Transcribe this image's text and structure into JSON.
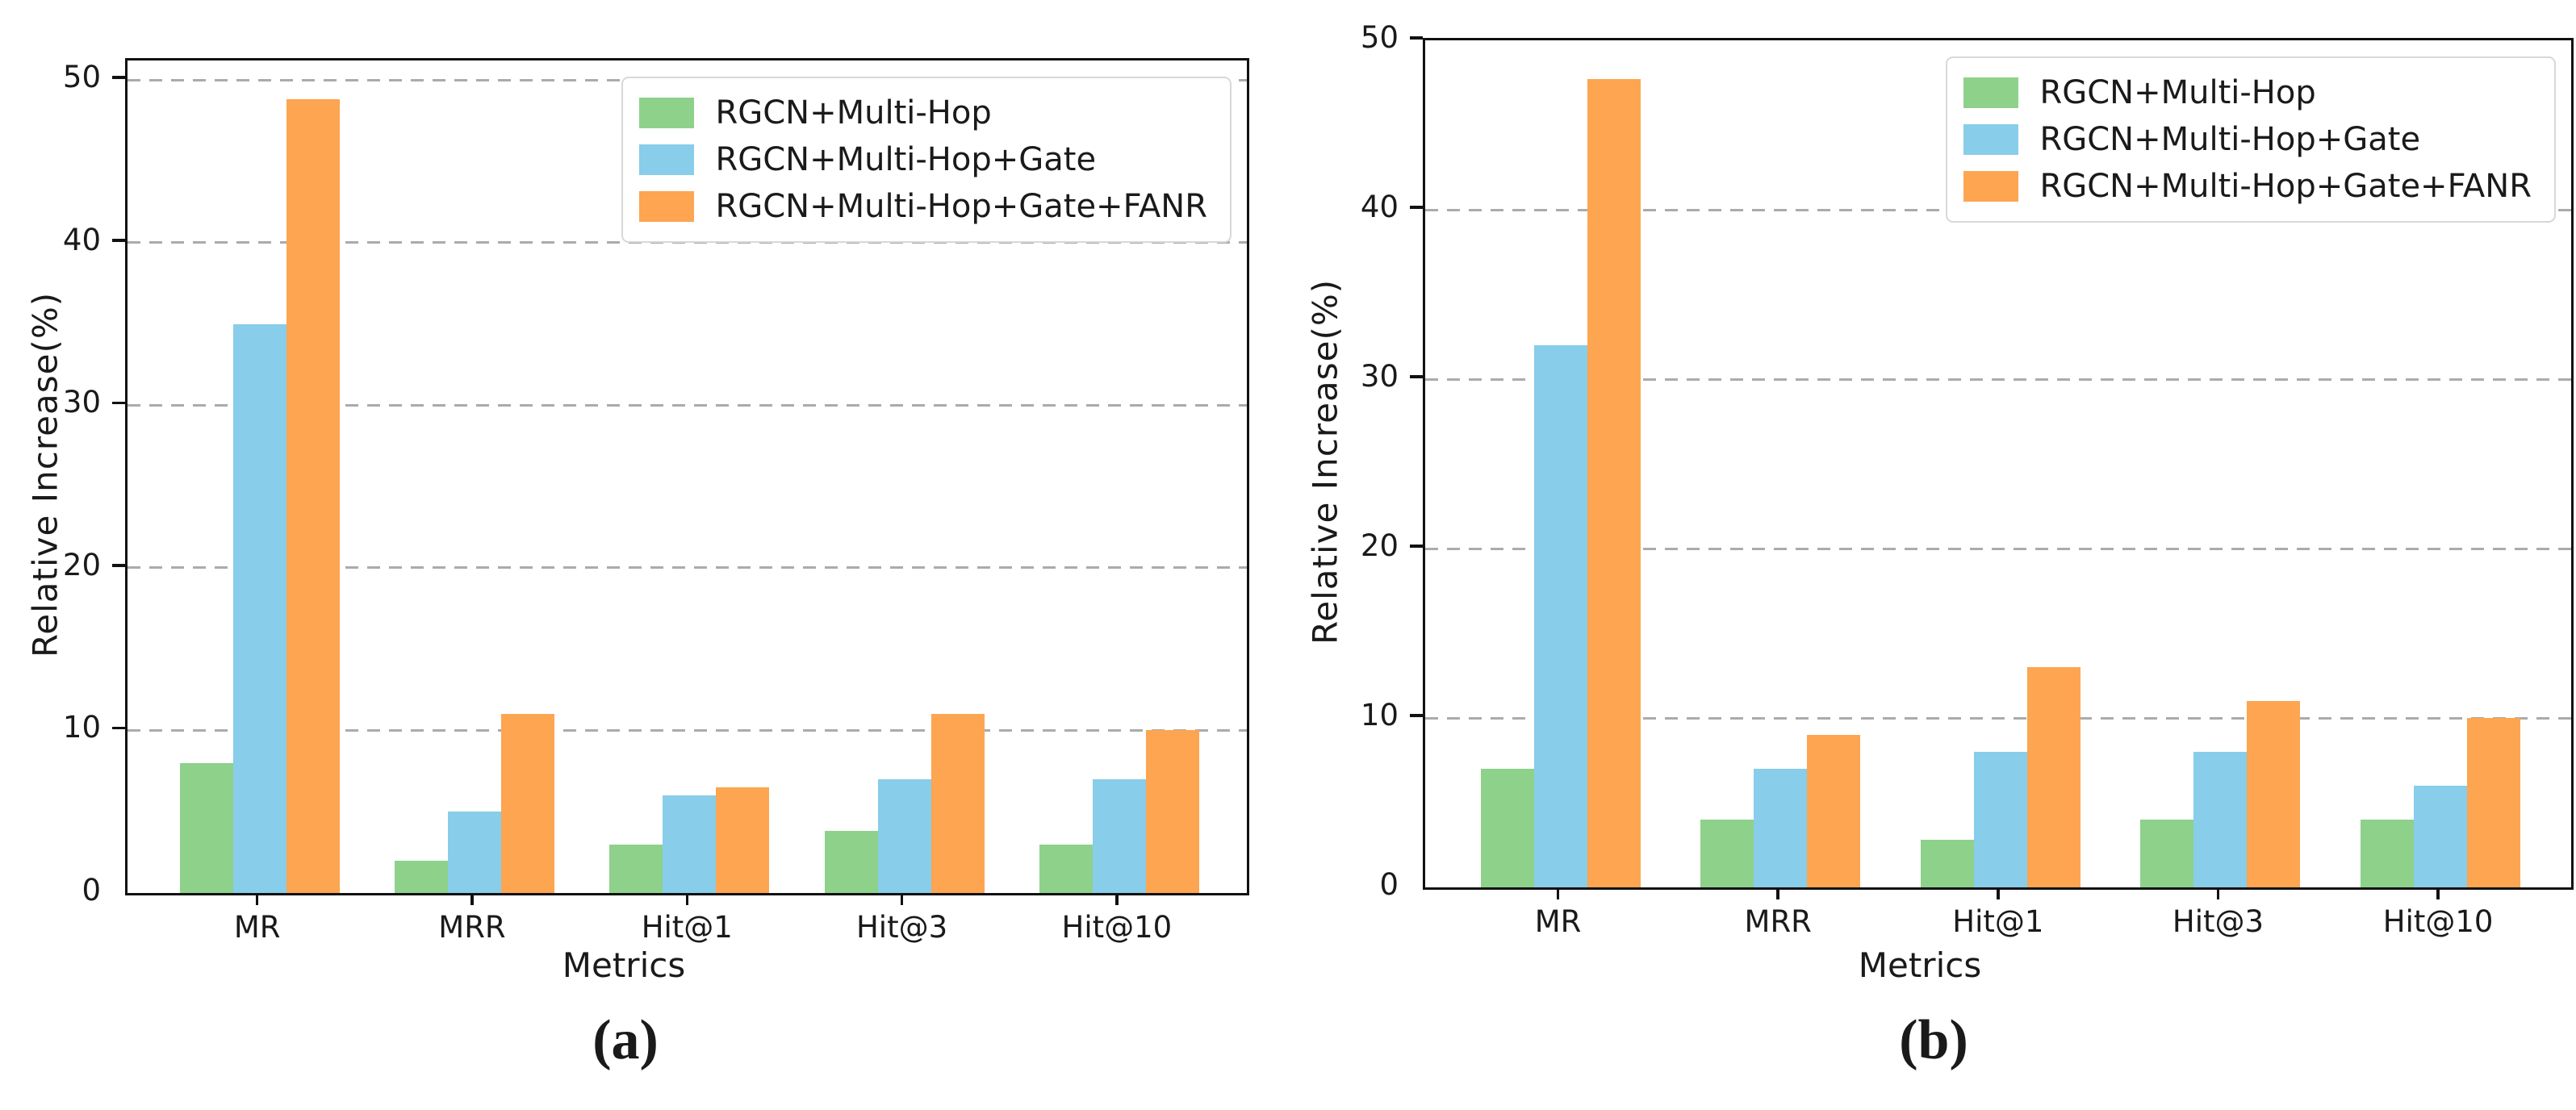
{
  "figure": {
    "description": "Two grouped bar charts comparing relative increase of RGCN model variants over five ranking metrics",
    "background": "#ffffff",
    "colors": {
      "series1": "#8ed18b",
      "series2": "#88cde9",
      "series3": "#fda551",
      "grid": "#ababab",
      "spine": "#111111",
      "text": "#1a1a1a",
      "legend_border": "#d8d8d8"
    }
  },
  "legend": {
    "position": "upper-right",
    "items": [
      {
        "label": "RGCN+Multi-Hop",
        "color": "#8ed18b"
      },
      {
        "label": "RGCN+Multi-Hop+Gate",
        "color": "#88cde9"
      },
      {
        "label": "RGCN+Multi-Hop+Gate+FANR",
        "color": "#fda551"
      }
    ]
  },
  "chart_data": [
    {
      "id": "a",
      "type": "bar",
      "caption": "(a)",
      "xlabel": "Metrics",
      "ylabel": "Relative Increase(%)",
      "categories": [
        "MR",
        "MRR",
        "Hit@1",
        "Hit@3",
        "Hit@10"
      ],
      "yticks": [
        0,
        10,
        20,
        30,
        40,
        50
      ],
      "ylim": [
        0,
        51.2
      ],
      "grid": "dashed-horizontal",
      "legend_position": "upper-right",
      "series": [
        {
          "name": "RGCN+Multi-Hop",
          "color": "#8ed18b",
          "values": [
            8,
            2,
            3,
            3.8,
            3
          ]
        },
        {
          "name": "RGCN+Multi-Hop+Gate",
          "color": "#88cde9",
          "values": [
            35,
            5,
            6,
            7,
            7
          ]
        },
        {
          "name": "RGCN+Multi-Hop+Gate+FANR",
          "color": "#fda551",
          "values": [
            48.8,
            11,
            6.5,
            11,
            10
          ]
        }
      ]
    },
    {
      "id": "b",
      "type": "bar",
      "caption": "(b)",
      "xlabel": "Metrics",
      "ylabel": "Relative Increase(%)",
      "categories": [
        "MR",
        "MRR",
        "Hit@1",
        "Hit@3",
        "Hit@10"
      ],
      "yticks": [
        0,
        10,
        20,
        30,
        40,
        50
      ],
      "ylim": [
        0,
        50
      ],
      "grid": "dashed-horizontal",
      "legend_position": "upper-right",
      "series": [
        {
          "name": "RGCN+Multi-Hop",
          "color": "#8ed18b",
          "values": [
            7,
            4,
            2.8,
            4,
            4
          ]
        },
        {
          "name": "RGCN+Multi-Hop+Gate",
          "color": "#88cde9",
          "values": [
            32,
            7,
            8,
            8,
            6
          ]
        },
        {
          "name": "RGCN+Multi-Hop+Gate+FANR",
          "color": "#fda551",
          "values": [
            47.7,
            9,
            13,
            11,
            10
          ]
        }
      ]
    }
  ]
}
